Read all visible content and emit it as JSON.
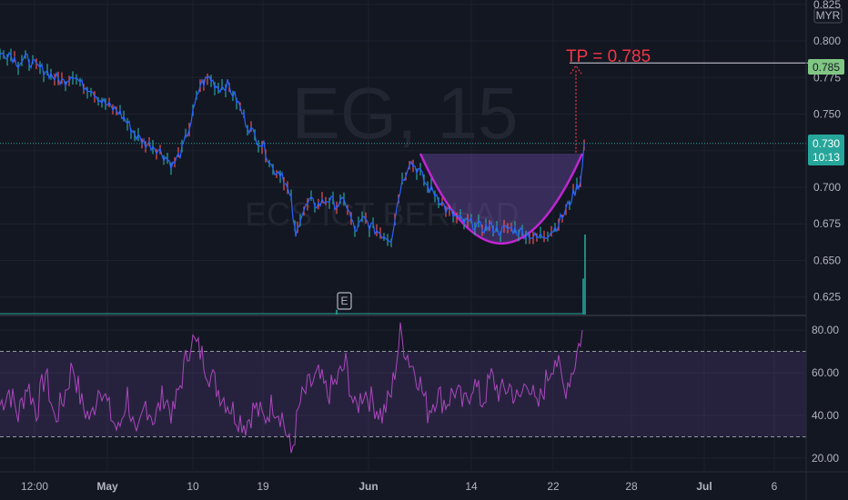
{
  "chart_data": {
    "type": "line",
    "watermark": {
      "symbol": "EG, 15",
      "subtitle": "ECS ICT BERHAD"
    },
    "price_axis": {
      "currency": "MYR",
      "ticks": [
        "0.825",
        "0.800",
        "0.775",
        "0.750",
        "0.725",
        "0.700",
        "0.675",
        "0.650",
        "0.625"
      ],
      "ylim": [
        0.613,
        0.828
      ]
    },
    "rsi_axis": {
      "ticks": [
        "80.00",
        "60.00",
        "40.00",
        "20.00"
      ],
      "ylim": [
        14,
        86
      ],
      "overbought": 70,
      "oversold": 30
    },
    "time_axis": {
      "labels": [
        "12:00",
        "May",
        "10",
        "19",
        "Jun",
        "14",
        "22",
        "28",
        "Jul",
        "6"
      ],
      "bold": [
        "May",
        "Jun",
        "Jul"
      ]
    },
    "current_price": {
      "value": 0.73,
      "label": "0.730",
      "countdown": "10:13"
    },
    "target": {
      "value": 0.785,
      "label": "0.785",
      "annotation": "TP = 0.785"
    },
    "events": [
      {
        "label": "E"
      }
    ],
    "price_series": {
      "name": "EG",
      "points": [
        [
          0,
          0.79
        ],
        [
          10,
          0.792
        ],
        [
          20,
          0.785
        ],
        [
          30,
          0.788
        ],
        [
          40,
          0.782
        ],
        [
          50,
          0.78
        ],
        [
          60,
          0.775
        ],
        [
          70,
          0.772
        ],
        [
          80,
          0.778
        ],
        [
          90,
          0.77
        ],
        [
          100,
          0.768
        ],
        [
          110,
          0.76
        ],
        [
          120,
          0.755
        ],
        [
          130,
          0.752
        ],
        [
          140,
          0.744
        ],
        [
          150,
          0.735
        ],
        [
          160,
          0.73
        ],
        [
          170,
          0.728
        ],
        [
          180,
          0.722
        ],
        [
          190,
          0.715
        ],
        [
          200,
          0.725
        ],
        [
          210,
          0.745
        ],
        [
          220,
          0.77
        ],
        [
          230,
          0.775
        ],
        [
          240,
          0.768
        ],
        [
          250,
          0.77
        ],
        [
          260,
          0.76
        ],
        [
          270,
          0.745
        ],
        [
          280,
          0.735
        ],
        [
          290,
          0.728
        ],
        [
          300,
          0.712
        ],
        [
          310,
          0.71
        ],
        [
          320,
          0.69
        ],
        [
          325,
          0.665
        ],
        [
          330,
          0.68
        ],
        [
          340,
          0.69
        ],
        [
          350,
          0.688
        ],
        [
          360,
          0.692
        ],
        [
          370,
          0.688
        ],
        [
          380,
          0.69
        ],
        [
          390,
          0.67
        ],
        [
          400,
          0.678
        ],
        [
          410,
          0.672
        ],
        [
          420,
          0.668
        ],
        [
          430,
          0.665
        ],
        [
          440,
          0.7
        ],
        [
          450,
          0.718
        ],
        [
          460,
          0.712
        ],
        [
          470,
          0.7
        ],
        [
          480,
          0.695
        ],
        [
          490,
          0.685
        ],
        [
          500,
          0.68
        ],
        [
          510,
          0.676
        ],
        [
          520,
          0.675
        ],
        [
          530,
          0.672
        ],
        [
          540,
          0.673
        ],
        [
          550,
          0.67
        ],
        [
          560,
          0.672
        ],
        [
          570,
          0.67
        ],
        [
          580,
          0.668
        ],
        [
          590,
          0.665
        ],
        [
          600,
          0.668
        ],
        [
          610,
          0.672
        ],
        [
          620,
          0.682
        ],
        [
          630,
          0.695
        ],
        [
          638,
          0.705
        ],
        [
          642,
          0.73
        ]
      ]
    },
    "volume_spikes": [
      {
        "x": 370,
        "v": 0.06
      },
      {
        "x": 641,
        "v": 0.45
      },
      {
        "x": 643,
        "v": 1.0
      }
    ],
    "rsi_series": {
      "name": "RSI",
      "points": [
        [
          0,
          45
        ],
        [
          10,
          52
        ],
        [
          20,
          40
        ],
        [
          30,
          55
        ],
        [
          40,
          42
        ],
        [
          50,
          60
        ],
        [
          60,
          38
        ],
        [
          70,
          48
        ],
        [
          80,
          64
        ],
        [
          90,
          45
        ],
        [
          100,
          38
        ],
        [
          110,
          56
        ],
        [
          120,
          42
        ],
        [
          130,
          32
        ],
        [
          140,
          50
        ],
        [
          150,
          26
        ],
        [
          160,
          46
        ],
        [
          170,
          38
        ],
        [
          180,
          50
        ],
        [
          190,
          40
        ],
        [
          200,
          58
        ],
        [
          210,
          76
        ],
        [
          220,
          70
        ],
        [
          230,
          60
        ],
        [
          240,
          52
        ],
        [
          250,
          46
        ],
        [
          260,
          40
        ],
        [
          270,
          36
        ],
        [
          280,
          44
        ],
        [
          290,
          38
        ],
        [
          300,
          46
        ],
        [
          310,
          40
        ],
        [
          320,
          22
        ],
        [
          330,
          46
        ],
        [
          340,
          54
        ],
        [
          350,
          58
        ],
        [
          360,
          50
        ],
        [
          370,
          56
        ],
        [
          380,
          64
        ],
        [
          390,
          42
        ],
        [
          400,
          52
        ],
        [
          410,
          46
        ],
        [
          420,
          40
        ],
        [
          430,
          50
        ],
        [
          440,
          78
        ],
        [
          450,
          66
        ],
        [
          460,
          58
        ],
        [
          470,
          42
        ],
        [
          480,
          50
        ],
        [
          490,
          46
        ],
        [
          500,
          52
        ],
        [
          510,
          44
        ],
        [
          520,
          56
        ],
        [
          530,
          46
        ],
        [
          540,
          58
        ],
        [
          550,
          50
        ],
        [
          560,
          54
        ],
        [
          570,
          46
        ],
        [
          580,
          58
        ],
        [
          590,
          42
        ],
        [
          600,
          56
        ],
        [
          610,
          68
        ],
        [
          620,
          52
        ],
        [
          630,
          62
        ],
        [
          640,
          80
        ]
      ]
    },
    "cup_pattern": {
      "rim_price": 0.723,
      "bottom_price": 0.66,
      "start_x": 462,
      "end_x": 640
    }
  }
}
